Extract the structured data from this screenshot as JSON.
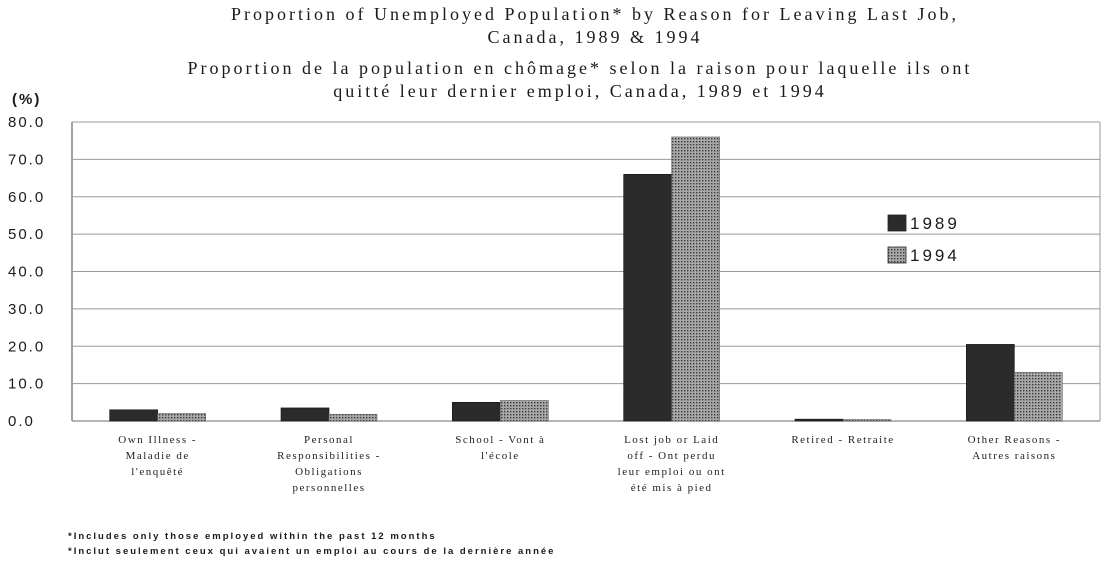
{
  "chart_data": {
    "type": "bar",
    "title_lines": [
      "Proportion of Unemployed Population* by Reason for Leaving Last Job,",
      "Canada, 1989 & 1994",
      "Proportion de la population en chômage* selon la raison pour laquelle ils ont",
      "quitté leur dernier emploi, Canada, 1989 et 1994"
    ],
    "ylabel": "(%)",
    "ylim": [
      0,
      80
    ],
    "yticks": [
      "0.0",
      "10.0",
      "20.0",
      "30.0",
      "40.0",
      "50.0",
      "60.0",
      "70.0",
      "80.0"
    ],
    "categories": [
      [
        "Own Illness -",
        "Maladie de",
        "l'enquêté"
      ],
      [
        "Personal",
        "Responsibilities -",
        "Obligations",
        "personnelles"
      ],
      [
        "School - Vont à",
        "l'école"
      ],
      [
        "Lost job or Laid",
        "off - Ont perdu",
        "leur emploi ou ont",
        "été mis à pied"
      ],
      [
        "Retired - Retraite"
      ],
      [
        "Other Reasons -",
        "Autres raisons"
      ]
    ],
    "series": [
      {
        "name": "1989",
        "values": [
          3.0,
          3.5,
          5.0,
          66.0,
          0.5,
          20.5
        ],
        "color": "#2b2b2b"
      },
      {
        "name": "1994",
        "values": [
          2.0,
          1.8,
          5.5,
          76.0,
          0.4,
          13.0
        ],
        "color": "#9c9c9c"
      }
    ],
    "grid": true,
    "legend_position": "right",
    "footnotes": [
      "*Includes only those employed within the past 12 months",
      "*Inclut seulement ceux qui avaient un emploi au cours de la dernière année"
    ]
  }
}
